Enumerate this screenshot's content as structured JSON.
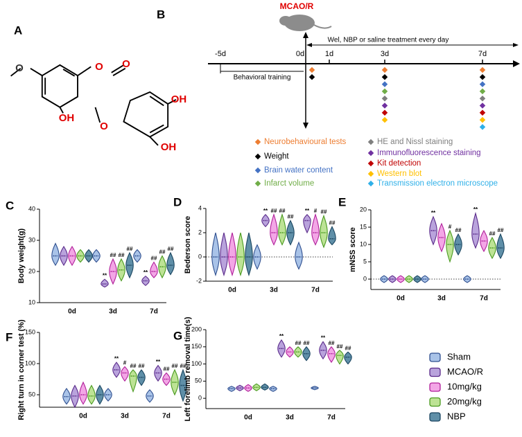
{
  "panel_labels": [
    "A",
    "B",
    "C",
    "D",
    "E",
    "F",
    "G"
  ],
  "structure": {
    "atoms": [
      "O",
      "O",
      "O",
      "OH",
      "O",
      "OH",
      "OH"
    ]
  },
  "timeline": {
    "event": "MCAO/R",
    "treatment": "Wel, NBP or saline treatment every day",
    "training": "Behavioral training",
    "days": [
      "-5d",
      "0d",
      "1d",
      "3d",
      "7d"
    ],
    "tests": [
      {
        "name": "Neurobehavioural tests",
        "color": "#ed7d31"
      },
      {
        "name": "Weight",
        "color": "#000000"
      },
      {
        "name": "Brain water content",
        "color": "#4472c4"
      },
      {
        "name": "Infarct volume",
        "color": "#70ad47"
      },
      {
        "name": "HE and Nissl staining",
        "color": "#7f7f7f"
      },
      {
        "name": "Immunofluorescence staining",
        "color": "#7030a0"
      },
      {
        "name": "Kit detection",
        "color": "#c00000"
      },
      {
        "name": "Western blot",
        "color": "#ffc000"
      },
      {
        "name": "Transmission electron microscope",
        "color": "#2fb0e8"
      }
    ]
  },
  "groups": [
    {
      "name": "Sham",
      "color": "#a9c3e8",
      "edge": "#2f4f8f"
    },
    {
      "name": "MCAO/R",
      "color": "#b9a3dc",
      "edge": "#5a2a8a"
    },
    {
      "name": "10mg/kg",
      "color": "#f3a6e6",
      "edge": "#b0209a"
    },
    {
      "name": "20mg/kg",
      "color": "#bde395",
      "edge": "#4a9a20"
    },
    {
      "name": "NBP",
      "color": "#5f8fa8",
      "edge": "#1a4560"
    }
  ],
  "chart_data": [
    {
      "type": "violin",
      "ylabel": "Body weight(g)",
      "categories": [
        "0d",
        "3d",
        "7d"
      ],
      "ylim": [
        10,
        40
      ],
      "yticks": [
        10,
        20,
        30,
        40
      ],
      "zero_line": false,
      "series": [
        {
          "values": [
            25,
            25,
            25
          ],
          "min": [
            22,
            23,
            23
          ],
          "max": [
            29,
            27,
            27
          ],
          "annotations": [
            null,
            null,
            null
          ]
        },
        {
          "values": [
            25,
            16,
            17
          ],
          "min": [
            22,
            15,
            15.5
          ],
          "max": [
            28,
            17.5,
            18.5
          ],
          "annotations": [
            null,
            "**",
            "**"
          ]
        },
        {
          "values": [
            25,
            20,
            20
          ],
          "min": [
            22,
            16,
            18
          ],
          "max": [
            28,
            24,
            23
          ],
          "annotations": [
            null,
            "##",
            "##"
          ]
        },
        {
          "values": [
            25,
            20.5,
            21.5
          ],
          "min": [
            23,
            17,
            18
          ],
          "max": [
            27,
            24,
            25
          ],
          "annotations": [
            null,
            "##",
            "##"
          ]
        },
        {
          "values": [
            25,
            22,
            22
          ],
          "min": [
            23,
            18,
            19
          ],
          "max": [
            27,
            26,
            26
          ],
          "annotations": [
            null,
            "##",
            "##"
          ]
        }
      ]
    },
    {
      "type": "violin",
      "ylabel": "Bederson score",
      "categories": [
        "0d",
        "3d",
        "7d"
      ],
      "ylim": [
        -2,
        4
      ],
      "yticks": [
        -2,
        0,
        2,
        4
      ],
      "zero_line": true,
      "series": [
        {
          "values": [
            0,
            0,
            0
          ],
          "min": [
            -1.5,
            -1,
            -1
          ],
          "max": [
            2,
            1,
            1.2
          ],
          "annotations": [
            null,
            null,
            null
          ]
        },
        {
          "values": [
            0,
            3,
            3
          ],
          "min": [
            -1.5,
            2.5,
            2
          ],
          "max": [
            2,
            3.5,
            3.5
          ],
          "annotations": [
            null,
            "**",
            "**"
          ]
        },
        {
          "values": [
            0,
            2,
            2
          ],
          "min": [
            -1.5,
            1,
            1
          ],
          "max": [
            2,
            3.5,
            3.5
          ],
          "annotations": [
            null,
            "##",
            "#"
          ]
        },
        {
          "values": [
            0,
            2,
            2
          ],
          "min": [
            -1.5,
            1,
            0.8
          ],
          "max": [
            2,
            3.5,
            3.4
          ],
          "annotations": [
            null,
            "##",
            "##"
          ]
        },
        {
          "values": [
            0,
            2,
            1.5
          ],
          "min": [
            -1.5,
            1,
            1
          ],
          "max": [
            2,
            3,
            2.5
          ],
          "annotations": [
            null,
            "##",
            "##"
          ]
        }
      ]
    },
    {
      "type": "violin",
      "ylabel": "mNSS score",
      "categories": [
        "0d",
        "3d",
        "7d"
      ],
      "ylim": [
        -3,
        20
      ],
      "yticks": [
        0,
        5,
        10,
        15,
        20
      ],
      "zero_line": true,
      "series": [
        {
          "values": [
            0,
            0,
            0
          ],
          "min": [
            -1,
            -1,
            -1
          ],
          "max": [
            1,
            1,
            1
          ],
          "annotations": [
            null,
            null,
            null
          ]
        },
        {
          "values": [
            0,
            14,
            13
          ],
          "min": [
            -1,
            10,
            9
          ],
          "max": [
            1,
            18,
            19
          ],
          "annotations": [
            null,
            "**",
            "**"
          ]
        },
        {
          "values": [
            0,
            12,
            11
          ],
          "min": [
            -1,
            8,
            8
          ],
          "max": [
            1,
            16,
            14
          ],
          "annotations": [
            null,
            null,
            null
          ]
        },
        {
          "values": [
            0,
            10,
            9
          ],
          "min": [
            -1,
            5,
            6
          ],
          "max": [
            1,
            14,
            12
          ],
          "annotations": [
            null,
            "#",
            "##"
          ]
        },
        {
          "values": [
            0,
            10,
            9
          ],
          "min": [
            -1,
            7,
            6
          ],
          "max": [
            1,
            13,
            13
          ],
          "annotations": [
            null,
            "##",
            "##"
          ]
        }
      ]
    },
    {
      "type": "violin",
      "ylabel": "Right turn in corner test (%)",
      "categories": [
        "0d",
        "3d",
        "7d"
      ],
      "ylim": [
        30,
        150
      ],
      "yticks": [
        50,
        100,
        150
      ],
      "zero_line": false,
      "series": [
        {
          "values": [
            47,
            50,
            48
          ],
          "min": [
            35,
            40,
            38
          ],
          "max": [
            60,
            60,
            58
          ],
          "annotations": [
            null,
            null,
            null
          ]
        },
        {
          "values": [
            48,
            90,
            85
          ],
          "min": [
            30,
            78,
            72
          ],
          "max": [
            65,
            102,
            97
          ],
          "annotations": [
            null,
            "**",
            "**"
          ]
        },
        {
          "values": [
            50,
            85,
            75
          ],
          "min": [
            35,
            72,
            65
          ],
          "max": [
            70,
            95,
            85
          ],
          "annotations": [
            null,
            "#",
            "##"
          ]
        },
        {
          "values": [
            48,
            80,
            70
          ],
          "min": [
            35,
            55,
            50
          ],
          "max": [
            65,
            90,
            90
          ],
          "annotations": [
            null,
            "##",
            "##"
          ]
        },
        {
          "values": [
            50,
            78,
            65
          ],
          "min": [
            35,
            65,
            40
          ],
          "max": [
            65,
            90,
            90
          ],
          "annotations": [
            null,
            "##",
            "##"
          ]
        }
      ]
    },
    {
      "type": "violin",
      "ylabel": "Left forelimb removal time(s)",
      "categories": [
        "0d",
        "3d",
        "7d"
      ],
      "ylim": [
        -30,
        200
      ],
      "yticks": [
        0,
        50,
        100,
        150,
        200
      ],
      "zero_line": false,
      "series": [
        {
          "values": [
            28,
            28,
            30
          ],
          "min": [
            20,
            20,
            25
          ],
          "max": [
            35,
            35,
            35
          ],
          "annotations": [
            null,
            null,
            null
          ]
        },
        {
          "values": [
            30,
            145,
            140
          ],
          "min": [
            22,
            120,
            115
          ],
          "max": [
            38,
            170,
            165
          ],
          "annotations": [
            null,
            "**",
            "**"
          ]
        },
        {
          "values": [
            30,
            135,
            130
          ],
          "min": [
            20,
            120,
            105
          ],
          "max": [
            40,
            150,
            150
          ],
          "annotations": [
            null,
            null,
            "##"
          ]
        },
        {
          "values": [
            32,
            135,
            125
          ],
          "min": [
            22,
            120,
            100
          ],
          "max": [
            42,
            150,
            140
          ],
          "annotations": [
            null,
            "##",
            "##"
          ]
        },
        {
          "values": [
            32,
            130,
            120
          ],
          "min": [
            24,
            110,
            100
          ],
          "max": [
            42,
            150,
            135
          ],
          "annotations": [
            null,
            "##",
            "##"
          ]
        }
      ]
    }
  ]
}
